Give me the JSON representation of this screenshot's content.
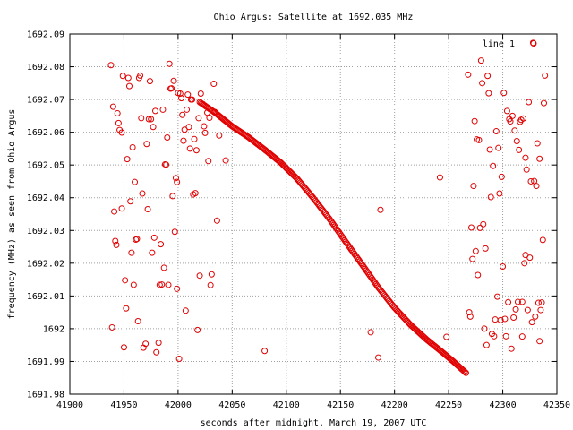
{
  "chart_data": {
    "type": "scatter",
    "title": "Ohio Argus: Satellite at 1692.035 MHz",
    "xlabel": "seconds after midnight, March 19, 2007 UTC",
    "ylabel": "frequency (MHz) as seen from Ohio Argus",
    "xlim": [
      41900,
      42350
    ],
    "ylim": [
      1691.98,
      1692.09
    ],
    "xticks": [
      "41900",
      "41950",
      "42000",
      "42050",
      "42100",
      "42150",
      "42200",
      "42250",
      "42300",
      "42350"
    ],
    "yticks": [
      "1691.98",
      "1691.99",
      "1692",
      "1692.01",
      "1692.02",
      "1692.03",
      "1692.04",
      "1692.05",
      "1692.06",
      "1692.07",
      "1692.08",
      "1692.09"
    ],
    "grid": true,
    "legend": {
      "position": "top-right",
      "entries": [
        "line 1"
      ]
    },
    "series": [
      {
        "name": "line 1",
        "color": "#e00000",
        "marker": "circle-open",
        "curve": [
          [
            42020,
            1692.0692
          ],
          [
            42035,
            1692.0658
          ],
          [
            42050,
            1692.0618
          ],
          [
            42065,
            1692.0585
          ],
          [
            42080,
            1692.0547
          ],
          [
            42095,
            1692.0507
          ],
          [
            42110,
            1692.0458
          ],
          [
            42125,
            1692.0399
          ],
          [
            42140,
            1692.0335
          ],
          [
            42155,
            1692.0265
          ],
          [
            42170,
            1692.0196
          ],
          [
            42185,
            1692.0126
          ],
          [
            42200,
            1692.0064
          ],
          [
            42215,
            1692.0011
          ],
          [
            42230,
            1691.9966
          ],
          [
            42245,
            1691.9926
          ],
          [
            42255,
            1691.9898
          ],
          [
            42266,
            1691.9865
          ]
        ],
        "noise_points": [
          [
            41938,
            1692.0805
          ],
          [
            41940,
            1692.0678
          ],
          [
            41941,
            1692.0358
          ],
          [
            41942,
            1692.0268
          ],
          [
            41943,
            1692.0256
          ],
          [
            41939,
            1692.0004
          ],
          [
            41944,
            1692.0658
          ],
          [
            41945,
            1692.0628
          ],
          [
            41946,
            1692.0607
          ],
          [
            41948,
            1692.0599
          ],
          [
            41948,
            1692.0367
          ],
          [
            41949,
            1692.0772
          ],
          [
            41950,
            1691.9943
          ],
          [
            41951,
            1692.0148
          ],
          [
            41952,
            1692.0062
          ],
          [
            41953,
            1692.0518
          ],
          [
            41954,
            1692.0766
          ],
          [
            41955,
            1692.0741
          ],
          [
            41956,
            1692.0389
          ],
          [
            41957,
            1692.0232
          ],
          [
            41958,
            1692.0554
          ],
          [
            41959,
            1692.0134
          ],
          [
            41960,
            1692.0448
          ],
          [
            41961,
            1692.0272
          ],
          [
            41962,
            1692.0274
          ],
          [
            41963,
            1692.0023
          ],
          [
            41964,
            1692.0766
          ],
          [
            41965,
            1692.0773
          ],
          [
            41966,
            1692.0643
          ],
          [
            41967,
            1692.0413
          ],
          [
            41968,
            1691.9942
          ],
          [
            41970,
            1691.9954
          ],
          [
            41971,
            1692.0564
          ],
          [
            41972,
            1692.0365
          ],
          [
            41973,
            1692.064
          ],
          [
            41974,
            1692.0756
          ],
          [
            41975,
            1692.064
          ],
          [
            41976,
            1692.0232
          ],
          [
            41977,
            1692.0616
          ],
          [
            41978,
            1692.0278
          ],
          [
            41979,
            1692.0665
          ],
          [
            41980,
            1691.9928
          ],
          [
            41982,
            1691.9957
          ],
          [
            41983,
            1692.0134
          ],
          [
            41984,
            1692.0258
          ],
          [
            41985,
            1692.0135
          ],
          [
            41986,
            1692.0669
          ],
          [
            41987,
            1692.0186
          ],
          [
            41988,
            1692.0502
          ],
          [
            41989,
            1692.0501
          ],
          [
            41990,
            1692.0584
          ],
          [
            41991,
            1692.0134
          ],
          [
            41992,
            1692.0809
          ],
          [
            41993,
            1692.0733
          ],
          [
            41994,
            1692.0734
          ],
          [
            41995,
            1692.0405
          ],
          [
            41996,
            1692.0757
          ],
          [
            41997,
            1692.0296
          ],
          [
            41998,
            1692.046
          ],
          [
            41999,
            1692.0448
          ],
          [
            41999,
            1692.0122
          ],
          [
            42000,
            1692.072
          ],
          [
            42001,
            1691.9908
          ],
          [
            42002,
            1692.0718
          ],
          [
            42003,
            1692.0704
          ],
          [
            42004,
            1692.0653
          ],
          [
            42005,
            1692.0574
          ],
          [
            42006,
            1692.0608
          ],
          [
            42007,
            1692.0055
          ],
          [
            42008,
            1692.0669
          ],
          [
            42009,
            1692.0715
          ],
          [
            42010,
            1692.0616
          ],
          [
            42011,
            1692.055
          ],
          [
            42012,
            1692.07
          ],
          [
            42013,
            1692.07
          ],
          [
            42014,
            1692.041
          ],
          [
            42015,
            1692.0579
          ],
          [
            42016,
            1692.0414
          ],
          [
            42017,
            1692.0545
          ],
          [
            42018,
            1691.9996
          ],
          [
            42019,
            1692.0643
          ],
          [
            42020,
            1692.0162
          ],
          [
            42021,
            1692.0718
          ],
          [
            42023,
            1692.0686
          ],
          [
            42024,
            1692.0618
          ],
          [
            42025,
            1692.0598
          ],
          [
            42027,
            1692.066
          ],
          [
            42028,
            1692.0512
          ],
          [
            42029,
            1692.0644
          ],
          [
            42030,
            1692.0133
          ],
          [
            42031,
            1692.0166
          ],
          [
            42033,
            1692.0748
          ],
          [
            42034,
            1692.0662
          ],
          [
            42036,
            1692.033
          ],
          [
            42038,
            1692.059
          ],
          [
            42044,
            1692.0514
          ],
          [
            42080,
            1691.9932
          ],
          [
            42178,
            1691.9989
          ],
          [
            42185,
            1691.9912
          ],
          [
            42187,
            1692.0363
          ],
          [
            42242,
            1692.0462
          ],
          [
            42248,
            1691.9975
          ],
          [
            42268,
            1692.0776
          ],
          [
            42269,
            1692.005
          ],
          [
            42270,
            1692.0037
          ],
          [
            42271,
            1692.0309
          ],
          [
            42272,
            1692.0213
          ],
          [
            42273,
            1692.0436
          ],
          [
            42274,
            1692.0634
          ],
          [
            42275,
            1692.0237
          ],
          [
            42276,
            1692.0578
          ],
          [
            42277,
            1692.0164
          ],
          [
            42278,
            1692.0576
          ],
          [
            42279,
            1692.0308
          ],
          [
            42280,
            1692.0819
          ],
          [
            42281,
            1692.075
          ],
          [
            42282,
            1692.0319
          ],
          [
            42283,
            1692.0
          ],
          [
            42284,
            1692.0245
          ],
          [
            42285,
            1691.995
          ],
          [
            42286,
            1692.0772
          ],
          [
            42287,
            1692.0719
          ],
          [
            42288,
            1692.0547
          ],
          [
            42289,
            1692.0402
          ],
          [
            42290,
            1691.9984
          ],
          [
            42291,
            1692.0497
          ],
          [
            42292,
            1691.9977
          ],
          [
            42293,
            1692.0028
          ],
          [
            42294,
            1692.0603
          ],
          [
            42295,
            1692.0098
          ],
          [
            42296,
            1692.0552
          ],
          [
            42297,
            1692.0413
          ],
          [
            42298,
            1692.0026
          ],
          [
            42299,
            1692.0464
          ],
          [
            42300,
            1692.019
          ],
          [
            42301,
            1692.072
          ],
          [
            42302,
            1692.003
          ],
          [
            42303,
            1691.9977
          ],
          [
            42304,
            1692.0665
          ],
          [
            42305,
            1692.0081
          ],
          [
            42306,
            1692.064
          ],
          [
            42307,
            1692.0633
          ],
          [
            42308,
            1691.9939
          ],
          [
            42309,
            1692.065
          ],
          [
            42310,
            1692.0034
          ],
          [
            42311,
            1692.0605
          ],
          [
            42312,
            1692.0059
          ],
          [
            42313,
            1692.0573
          ],
          [
            42314,
            1692.0082
          ],
          [
            42315,
            1692.0546
          ],
          [
            42316,
            1692.0632
          ],
          [
            42317,
            1692.0638
          ],
          [
            42318,
            1691.9976
          ],
          [
            42319,
            1692.0642
          ],
          [
            42320,
            1692.02
          ],
          [
            42321,
            1692.0522
          ],
          [
            42322,
            1692.0486
          ],
          [
            42323,
            1692.0057
          ],
          [
            42324,
            1692.0692
          ],
          [
            42325,
            1692.0217
          ],
          [
            42326,
            1692.045
          ],
          [
            42327,
            1692.002
          ],
          [
            42328,
            1692.0873
          ],
          [
            42329,
            1692.0451
          ],
          [
            42330,
            1692.0037
          ],
          [
            42331,
            1692.0436
          ],
          [
            42332,
            1692.0566
          ],
          [
            42333,
            1692.0079
          ],
          [
            42334,
            1692.0519
          ],
          [
            42335,
            1692.0057
          ],
          [
            42336,
            1692.008
          ],
          [
            42337,
            1692.0271
          ],
          [
            42338,
            1692.0689
          ],
          [
            42339,
            1692.0773
          ],
          [
            42321,
            1692.0225
          ],
          [
            42318,
            1692.0082
          ],
          [
            42334,
            1691.9962
          ]
        ]
      }
    ]
  }
}
